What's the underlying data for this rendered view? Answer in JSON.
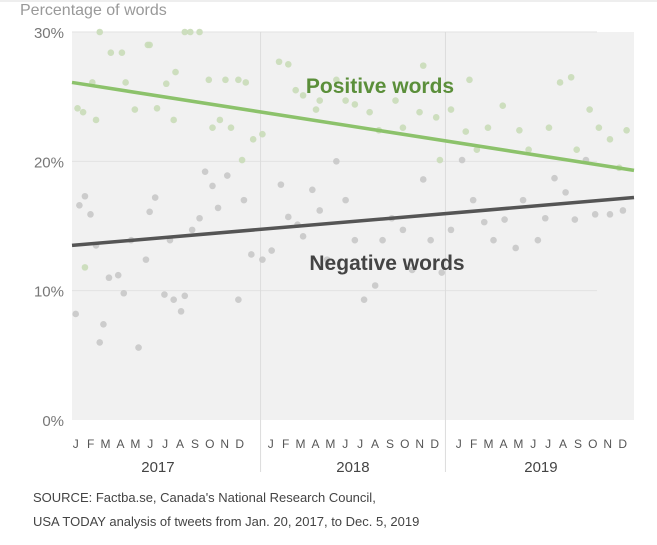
{
  "chart_data": {
    "type": "scatter",
    "ylabel": "Percentage of words",
    "ylim": [
      0,
      30
    ],
    "xlim": [
      2016.98,
      2020.02
    ],
    "yticks": [
      "0%",
      "10%",
      "20%",
      "30%"
    ],
    "ytick_values": [
      0,
      10,
      20,
      30
    ],
    "months": [
      "J",
      "F",
      "M",
      "A",
      "M",
      "J",
      "J",
      "A",
      "S",
      "O",
      "N",
      "D"
    ],
    "years": [
      "2017",
      "2018",
      "2019"
    ],
    "grid": true,
    "colors": {
      "background": "#f1f1f1",
      "positive_dot": "#c9dcb8",
      "positive_line": "#8cc26b",
      "positive_label": "#5b8f3a",
      "negative_dot": "#c8c8c8",
      "negative_line": "#555555",
      "negative_label": "#444444"
    },
    "series": [
      {
        "name": "Positive words",
        "trend": [
          [
            2016.98,
            26.1
          ],
          [
            2020.02,
            19.3
          ]
        ],
        "points": [
          [
            2017.05,
            11.8
          ],
          [
            2017.01,
            24.1
          ],
          [
            2017.04,
            23.8
          ],
          [
            2017.09,
            26.1
          ],
          [
            2017.11,
            23.2
          ],
          [
            2017.13,
            30.0
          ],
          [
            2017.19,
            28.4
          ],
          [
            2017.25,
            28.4
          ],
          [
            2017.27,
            26.1
          ],
          [
            2017.32,
            24.0
          ],
          [
            2017.39,
            29.0
          ],
          [
            2017.4,
            29.0
          ],
          [
            2017.44,
            24.1
          ],
          [
            2017.49,
            26.0
          ],
          [
            2017.53,
            23.2
          ],
          [
            2017.54,
            26.9
          ],
          [
            2017.59,
            30.0
          ],
          [
            2017.62,
            30.0
          ],
          [
            2017.67,
            30.0
          ],
          [
            2017.72,
            26.3
          ],
          [
            2017.74,
            22.6
          ],
          [
            2017.78,
            23.2
          ],
          [
            2017.81,
            26.3
          ],
          [
            2017.88,
            26.3
          ],
          [
            2017.92,
            26.1
          ],
          [
            2017.84,
            22.6
          ],
          [
            2017.9,
            20.1
          ],
          [
            2017.96,
            21.7
          ],
          [
            2018.01,
            22.1
          ],
          [
            2018.1,
            27.7
          ],
          [
            2018.15,
            27.5
          ],
          [
            2018.19,
            25.5
          ],
          [
            2018.23,
            25.1
          ],
          [
            2018.3,
            24.0
          ],
          [
            2018.32,
            24.7
          ],
          [
            2018.41,
            26.3
          ],
          [
            2018.46,
            24.7
          ],
          [
            2018.51,
            24.4
          ],
          [
            2018.59,
            23.8
          ],
          [
            2018.64,
            22.4
          ],
          [
            2018.73,
            24.7
          ],
          [
            2018.77,
            22.6
          ],
          [
            2018.86,
            23.8
          ],
          [
            2018.88,
            27.4
          ],
          [
            2018.95,
            23.4
          ],
          [
            2018.97,
            20.1
          ],
          [
            2019.03,
            24.0
          ],
          [
            2019.11,
            22.3
          ],
          [
            2019.13,
            26.3
          ],
          [
            2019.17,
            20.9
          ],
          [
            2019.23,
            22.6
          ],
          [
            2019.31,
            24.3
          ],
          [
            2019.4,
            22.4
          ],
          [
            2019.45,
            20.9
          ],
          [
            2019.56,
            22.6
          ],
          [
            2019.62,
            26.1
          ],
          [
            2019.68,
            26.5
          ],
          [
            2019.71,
            20.9
          ],
          [
            2019.78,
            24.0
          ],
          [
            2019.83,
            22.6
          ],
          [
            2019.89,
            21.7
          ],
          [
            2019.94,
            19.5
          ],
          [
            2019.98,
            22.4
          ]
        ]
      },
      {
        "name": "Negative words",
        "trend": [
          [
            2016.98,
            13.5
          ],
          [
            2020.02,
            17.2
          ]
        ],
        "points": [
          [
            2017.0,
            8.2
          ],
          [
            2017.02,
            16.6
          ],
          [
            2017.05,
            17.3
          ],
          [
            2017.08,
            15.9
          ],
          [
            2017.11,
            13.5
          ],
          [
            2017.13,
            6.0
          ],
          [
            2017.15,
            7.4
          ],
          [
            2017.18,
            11.0
          ],
          [
            2017.23,
            11.2
          ],
          [
            2017.26,
            9.8
          ],
          [
            2017.3,
            13.9
          ],
          [
            2017.34,
            5.6
          ],
          [
            2017.38,
            12.4
          ],
          [
            2017.4,
            16.1
          ],
          [
            2017.43,
            17.2
          ],
          [
            2017.48,
            9.7
          ],
          [
            2017.51,
            13.9
          ],
          [
            2017.53,
            9.3
          ],
          [
            2017.57,
            8.4
          ],
          [
            2017.59,
            9.6
          ],
          [
            2017.63,
            14.7
          ],
          [
            2017.67,
            15.6
          ],
          [
            2017.7,
            19.2
          ],
          [
            2017.74,
            18.1
          ],
          [
            2017.77,
            16.4
          ],
          [
            2017.82,
            18.9
          ],
          [
            2017.88,
            9.3
          ],
          [
            2017.91,
            17.0
          ],
          [
            2017.95,
            12.8
          ],
          [
            2018.01,
            12.4
          ],
          [
            2018.06,
            13.1
          ],
          [
            2018.11,
            18.2
          ],
          [
            2018.15,
            15.7
          ],
          [
            2018.2,
            15.1
          ],
          [
            2018.23,
            14.2
          ],
          [
            2018.28,
            17.8
          ],
          [
            2018.32,
            16.2
          ],
          [
            2018.36,
            12.4
          ],
          [
            2018.41,
            20.0
          ],
          [
            2018.46,
            17.0
          ],
          [
            2018.51,
            13.9
          ],
          [
            2018.56,
            9.3
          ],
          [
            2018.62,
            10.4
          ],
          [
            2018.66,
            13.9
          ],
          [
            2018.71,
            15.6
          ],
          [
            2018.77,
            14.7
          ],
          [
            2018.82,
            11.6
          ],
          [
            2018.88,
            18.6
          ],
          [
            2018.92,
            13.9
          ],
          [
            2018.98,
            11.4
          ],
          [
            2019.03,
            14.7
          ],
          [
            2019.09,
            20.1
          ],
          [
            2019.15,
            17.0
          ],
          [
            2019.21,
            15.3
          ],
          [
            2019.26,
            13.9
          ],
          [
            2019.32,
            15.5
          ],
          [
            2019.38,
            13.3
          ],
          [
            2019.42,
            17.0
          ],
          [
            2019.5,
            13.9
          ],
          [
            2019.54,
            15.6
          ],
          [
            2019.59,
            18.7
          ],
          [
            2019.65,
            17.6
          ],
          [
            2019.7,
            15.5
          ],
          [
            2019.76,
            20.1
          ],
          [
            2019.81,
            15.9
          ],
          [
            2019.89,
            15.9
          ],
          [
            2019.96,
            16.2
          ]
        ]
      }
    ]
  },
  "source": {
    "line1": "SOURCE: Factba.se, Canada's National Research Council,",
    "line2": "USA TODAY analysis of tweets from Jan. 20, 2017, to Dec. 5, 2019"
  }
}
